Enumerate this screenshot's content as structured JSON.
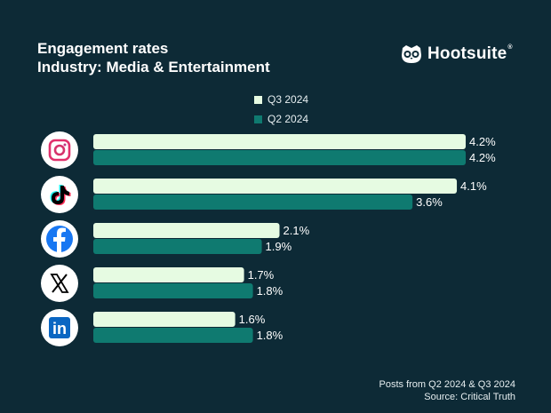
{
  "header": {
    "title_line1": "Engagement rates",
    "title_line2": "Industry: Media & Entertainment"
  },
  "brand": {
    "name": "Hootsuite",
    "reg_mark": "®",
    "logo_icon": "owl-icon"
  },
  "footer": {
    "line1": "Posts from Q2 2024 & Q3 2024",
    "line2": "Source: Critical Truth"
  },
  "colors": {
    "background": "#0d2a36",
    "q3": "#e6fbe2",
    "q2": "#0f7a70",
    "text": "#ffffff"
  },
  "chart_data": {
    "type": "bar",
    "orientation": "horizontal",
    "title": "Engagement rates",
    "subtitle": "Industry: Media & Entertainment",
    "categories": [
      "Instagram",
      "TikTok",
      "Facebook",
      "X",
      "LinkedIn"
    ],
    "category_icons": [
      "instagram-icon",
      "tiktok-icon",
      "facebook-icon",
      "x-icon",
      "linkedin-icon"
    ],
    "series": [
      {
        "name": "Q3 2024",
        "values": [
          4.2,
          4.1,
          2.1,
          1.7,
          1.6
        ],
        "labels": [
          "4.2%",
          "4.1%",
          "2.1%",
          "1.7%",
          "1.6%"
        ]
      },
      {
        "name": "Q2 2024",
        "values": [
          4.2,
          3.6,
          1.9,
          1.8,
          1.8
        ],
        "labels": [
          "4.2%",
          "3.6%",
          "1.9%",
          "1.8%",
          "1.8%"
        ]
      }
    ],
    "xlim": [
      0,
      4.3
    ],
    "legend_position": "top-center",
    "grid": false
  }
}
